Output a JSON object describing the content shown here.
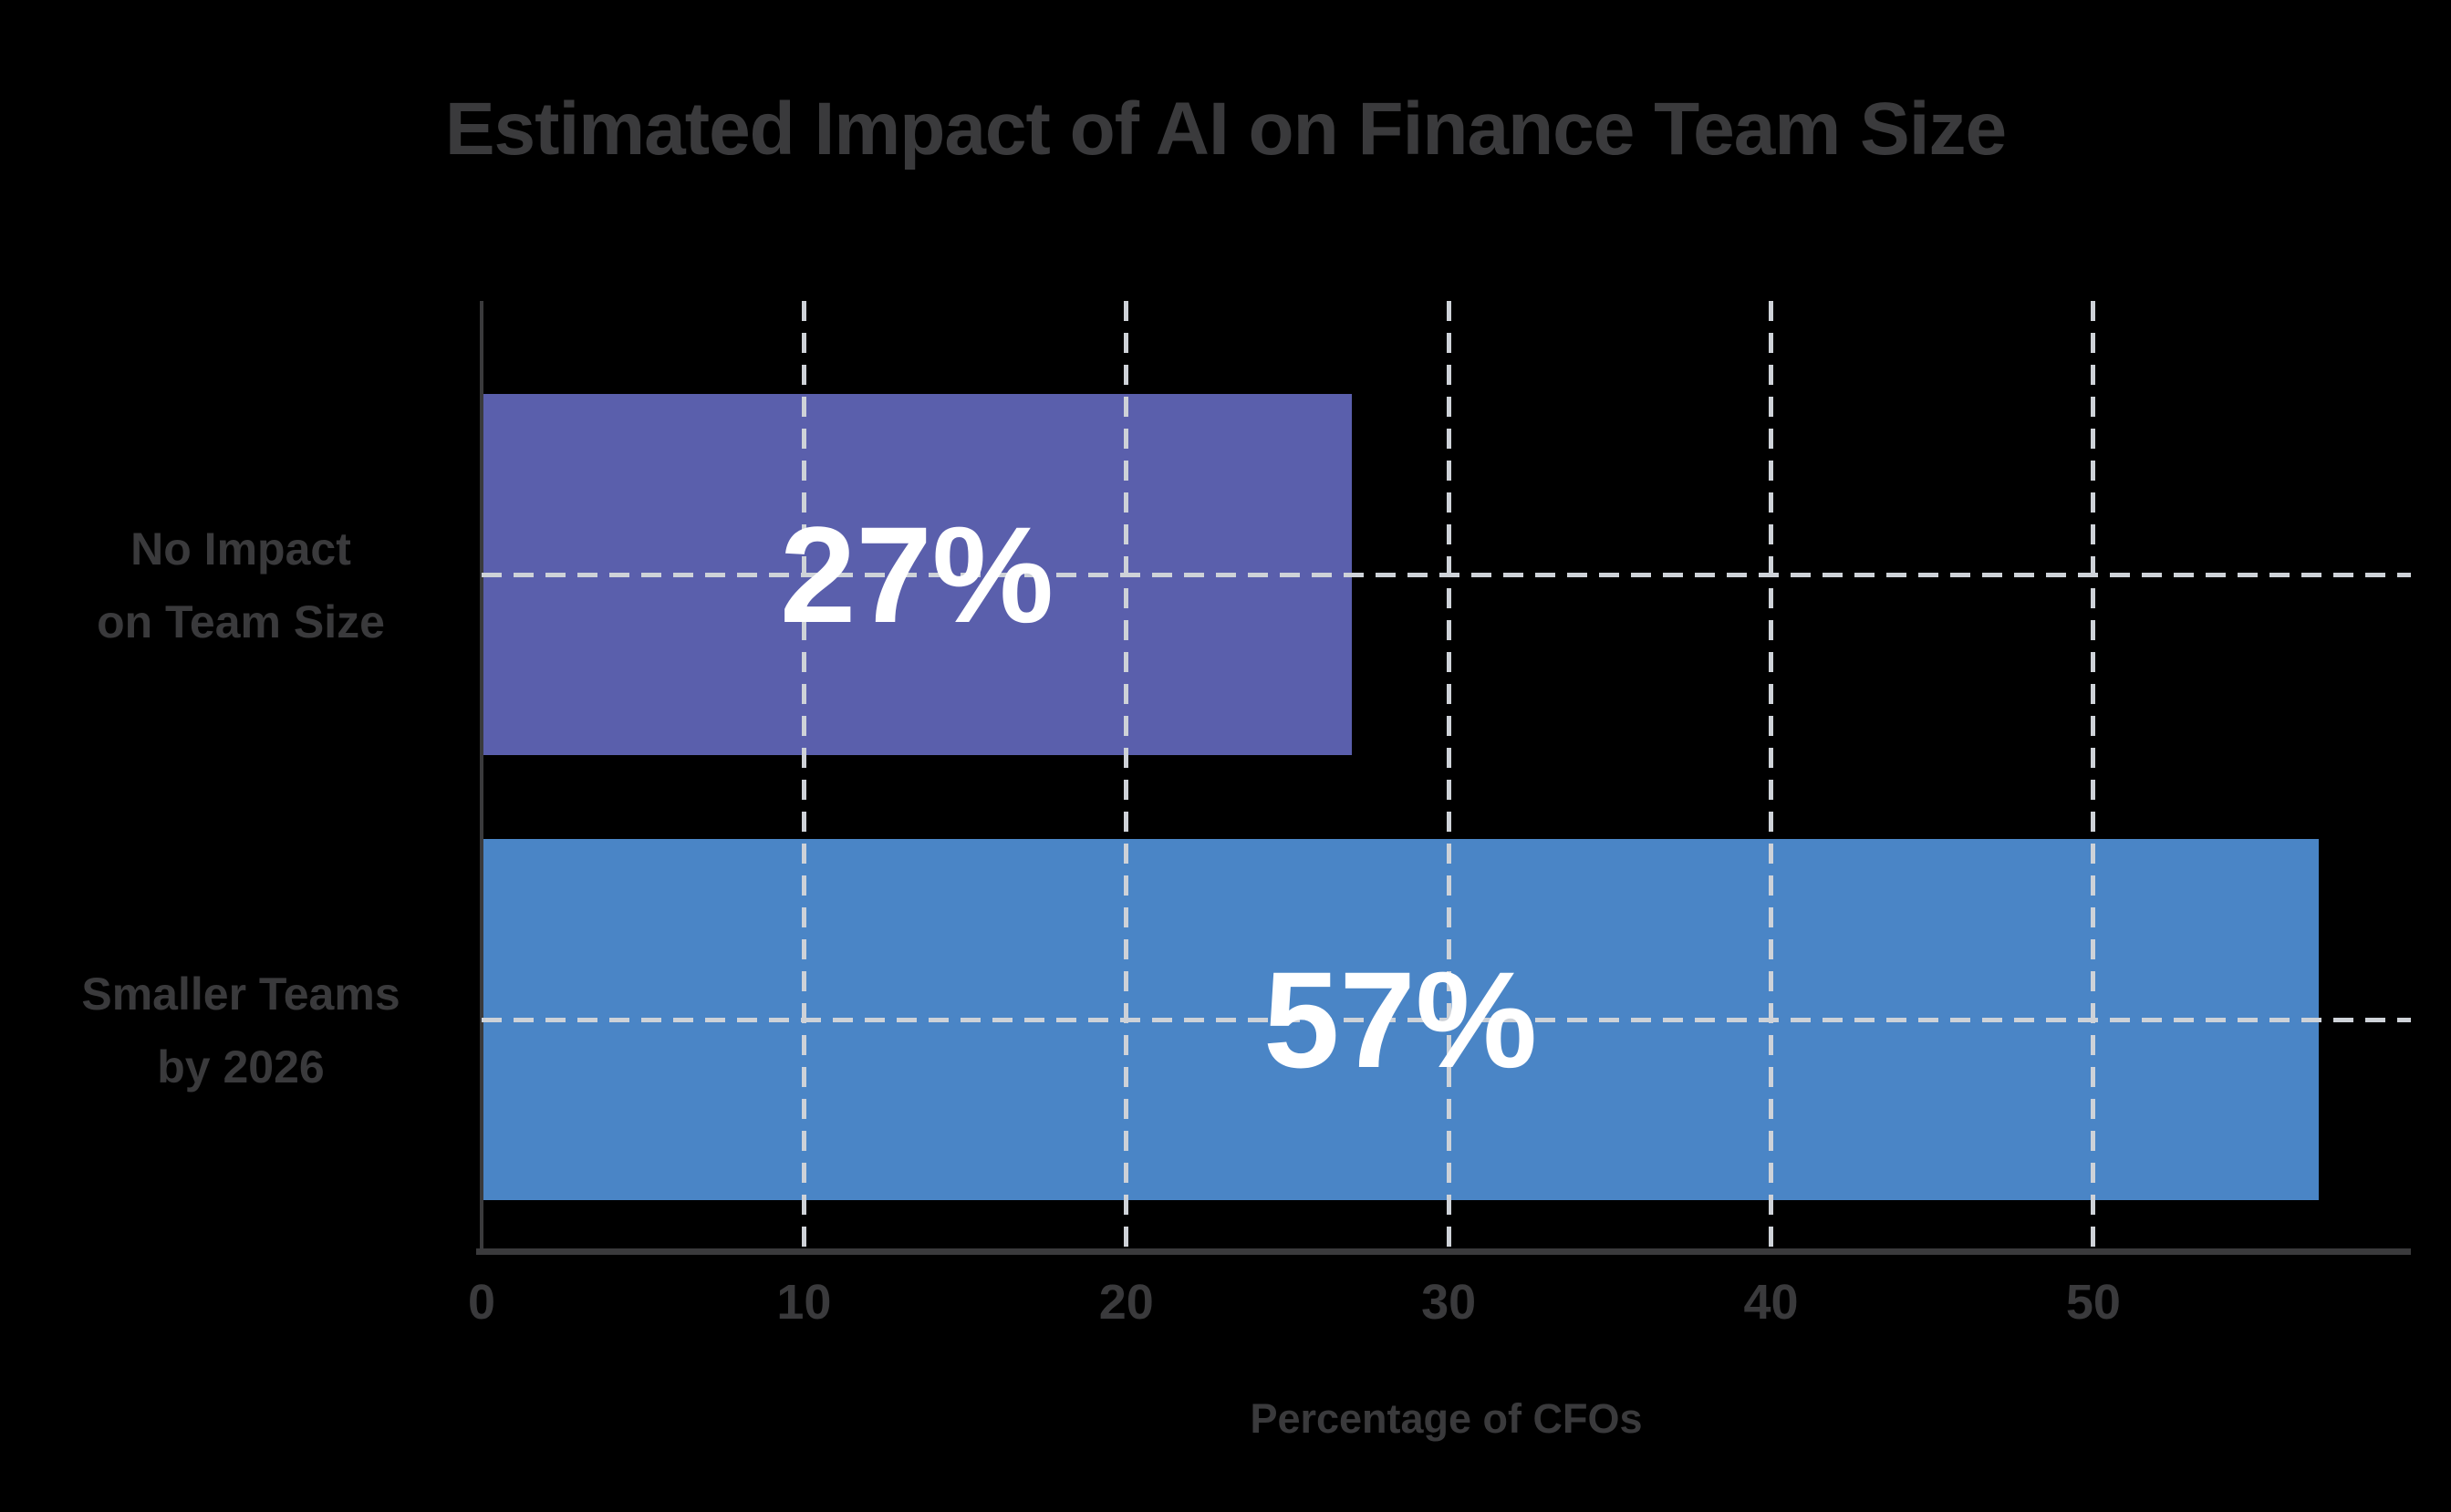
{
  "title": "Estimated Impact of AI on Finance Team Size",
  "colors": {
    "background": "#000000",
    "text": "#3a3a3c",
    "grid": "#ced2d8",
    "axis": "#3a3a3c",
    "value_label": "#ffffff",
    "bar_no_impact": "#5a5fac",
    "bar_smaller_teams": "#4a85c6"
  },
  "chart_data": {
    "type": "bar",
    "orientation": "horizontal",
    "title": "Estimated Impact of AI on Finance Team Size",
    "categories": [
      "No Impact\non Team Size",
      "Smaller Teams\nby 2026"
    ],
    "values": [
      27,
      57
    ],
    "value_labels": [
      "27%",
      "57%"
    ],
    "bar_colors": [
      "#5a5fac",
      "#4a85c6"
    ],
    "xlabel": "Percentage of CFOs",
    "ylabel": "",
    "xlim": [
      0,
      59.85
    ],
    "xticks": [
      0,
      10,
      20,
      30,
      40,
      50
    ],
    "grid": "dashed",
    "gridlines": {
      "vertical_at_ticks": true,
      "horizontal_at_bar_centers": true
    },
    "legend": "none"
  }
}
